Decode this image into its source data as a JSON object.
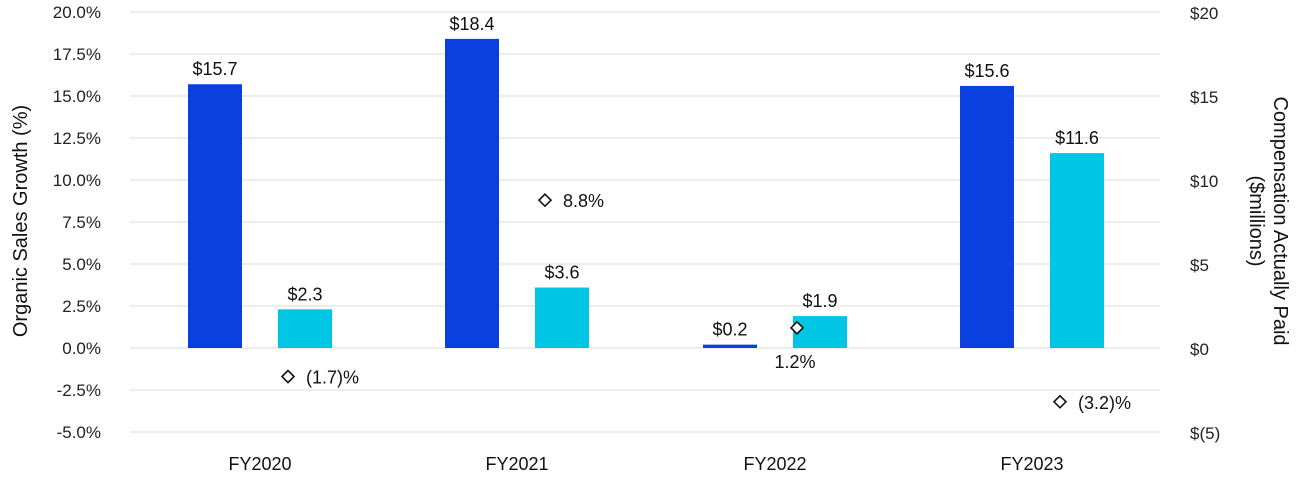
{
  "chart_data": {
    "type": "bar",
    "categories": [
      "FY2020",
      "FY2021",
      "FY2022",
      "FY2023"
    ],
    "series": [
      {
        "values": [
          15.7,
          18.4,
          0.2,
          15.6
        ],
        "labels": [
          "$15.7",
          "$18.4",
          "$0.2",
          "$15.6"
        ],
        "color": "#0a3fe0",
        "axis": "right"
      },
      {
        "values": [
          2.3,
          3.6,
          1.9,
          11.6
        ],
        "labels": [
          "$2.3",
          "$3.6",
          "$1.9",
          "$11.6"
        ],
        "color": "#00c6e6",
        "axis": "right"
      },
      {
        "type": "scatter",
        "marker": "diamond-open",
        "values": [
          -1.7,
          8.8,
          1.2,
          -3.2
        ],
        "labels": [
          "(1.7)%",
          "8.8%",
          "1.2%",
          "(3.2)%"
        ],
        "axis": "left"
      }
    ],
    "left_axis": {
      "label": "Organic Sales Growth (%)",
      "range": [
        -5,
        20
      ],
      "ticks": [
        20,
        17.5,
        15,
        12.5,
        10,
        7.5,
        5,
        2.5,
        0,
        -2.5,
        -5
      ],
      "tick_labels": [
        "20.0%",
        "17.5%",
        "15.0%",
        "12.5%",
        "10.0%",
        "7.5%",
        "5.0%",
        "2.5%",
        "0.0%",
        "-2.5%",
        "-5.0%"
      ]
    },
    "right_axis": {
      "label_lines": [
        "Compensation Actually Paid",
        "($millions)"
      ],
      "range": [
        -5,
        20
      ],
      "ticks": [
        20,
        15,
        10,
        5,
        0,
        -5
      ],
      "tick_labels": [
        "$20",
        "$15",
        "$10",
        "$5",
        "$0",
        "$(5)"
      ]
    },
    "grid": true
  }
}
